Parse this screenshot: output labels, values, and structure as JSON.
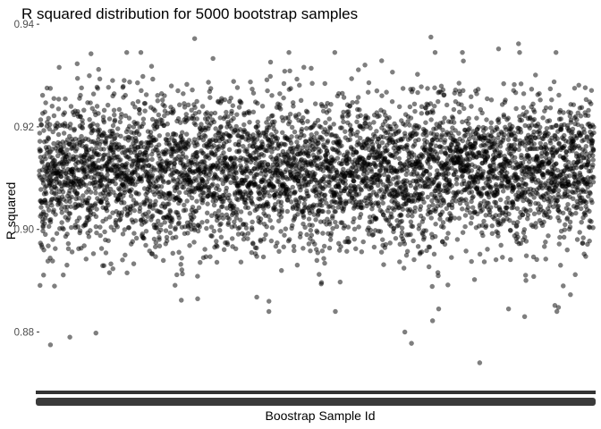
{
  "chart_data": {
    "type": "scatter",
    "title": "R squared distribution for 5000 bootstrap samples",
    "xlabel": "Boostrap Sample Id",
    "ylabel": "R squared",
    "n_points": 5000,
    "x_range": [
      1,
      5000
    ],
    "ylim": [
      0.8705,
      0.9395
    ],
    "y_ticks": [
      0.88,
      0.9,
      0.92,
      0.94
    ],
    "y_tick_labels": [
      "0.88",
      "0.90",
      "0.92",
      "0.94"
    ],
    "x_tick_labels_overplotted": true,
    "grid": false,
    "legend": "none",
    "distribution_estimate": {
      "center": 0.911,
      "spread_sd": 0.0075,
      "min": 0.874,
      "max": 0.9375
    },
    "notable_outliers": [
      {
        "x": 101,
        "y": 0.8775
      },
      {
        "x": 276,
        "y": 0.879
      },
      {
        "x": 511,
        "y": 0.8798
      },
      {
        "x": 1281,
        "y": 0.8862
      },
      {
        "x": 1961,
        "y": 0.8868
      },
      {
        "x": 2071,
        "y": 0.886
      },
      {
        "x": 3296,
        "y": 0.88
      },
      {
        "x": 3356,
        "y": 0.8778
      },
      {
        "x": 3546,
        "y": 0.8822
      },
      {
        "x": 3601,
        "y": 0.8845
      },
      {
        "x": 3971,
        "y": 0.874
      },
      {
        "x": 4231,
        "y": 0.8845
      },
      {
        "x": 4376,
        "y": 0.883
      },
      {
        "x": 4681,
        "y": 0.8848
      },
      {
        "x": 1401,
        "y": 0.9372
      },
      {
        "x": 3531,
        "y": 0.9375
      },
      {
        "x": 4321,
        "y": 0.9362
      },
      {
        "x": 4141,
        "y": 0.9352
      }
    ]
  }
}
